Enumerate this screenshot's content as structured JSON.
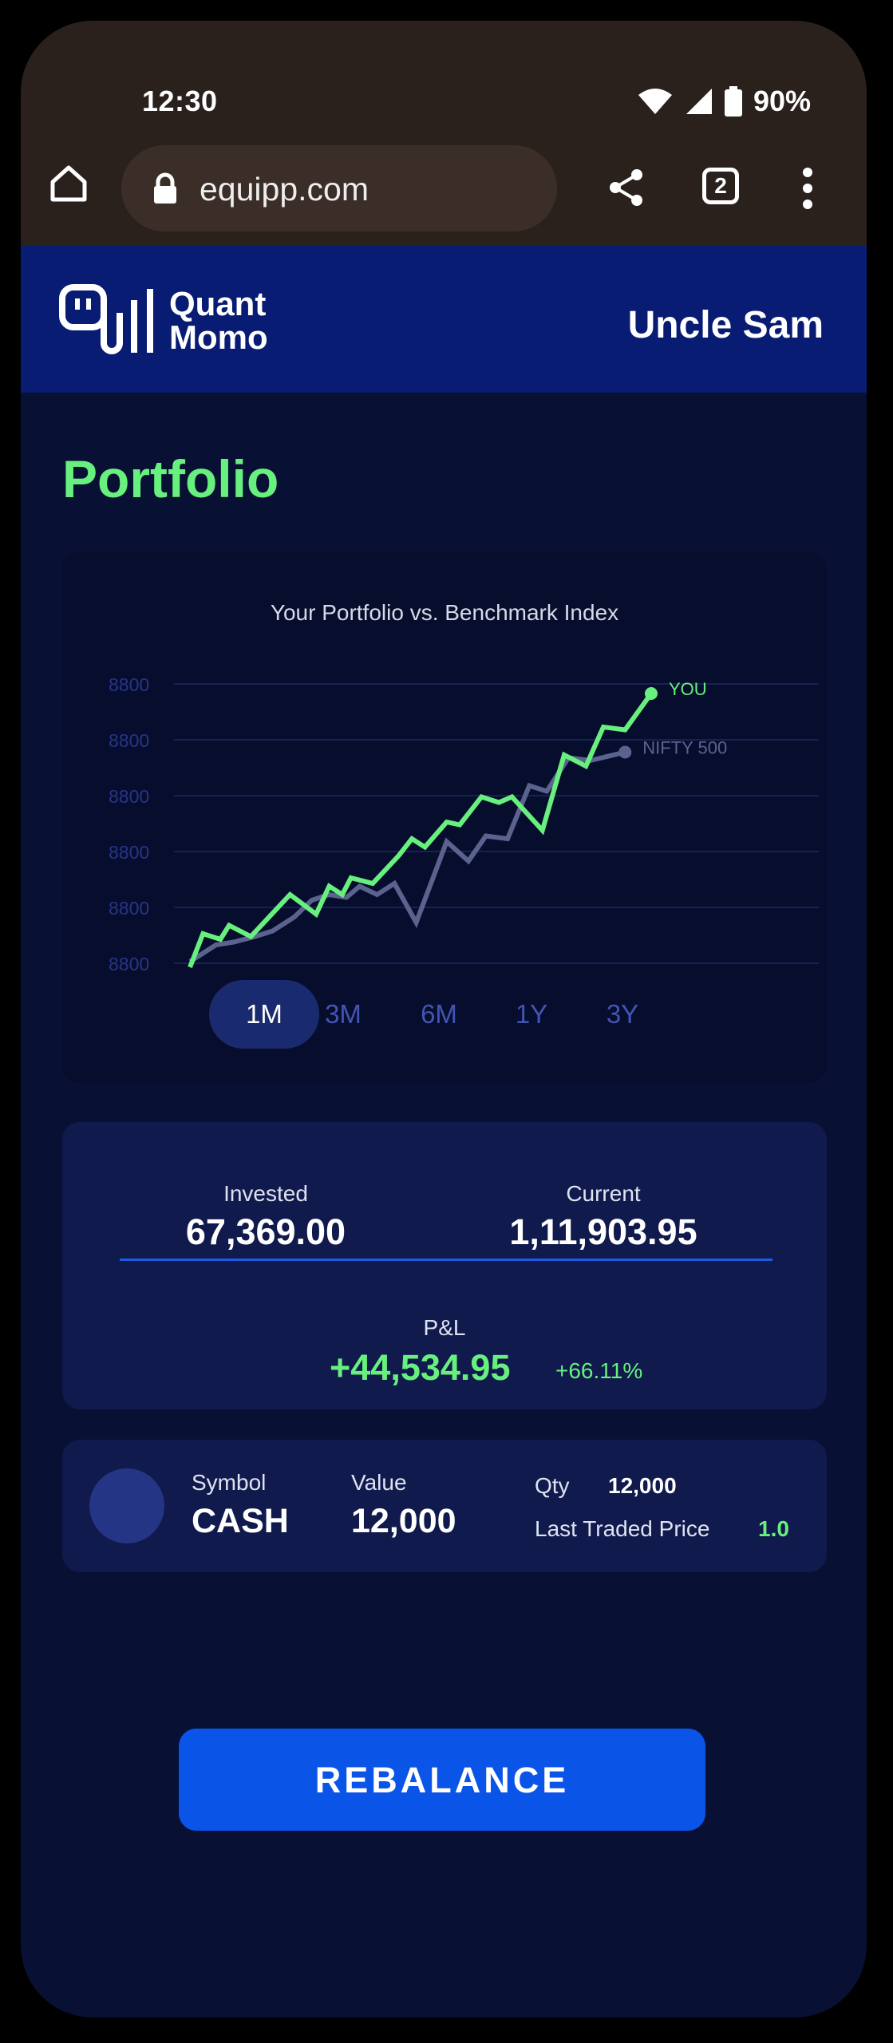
{
  "status": {
    "time": "12:30",
    "battery": "90%"
  },
  "browser": {
    "url": "equipp.com",
    "tab_count": "2"
  },
  "app": {
    "brand_line1": "Quant",
    "brand_line2": "Momo",
    "user_name": "Uncle Sam"
  },
  "page": {
    "title": "Portfolio"
  },
  "chart_data": {
    "type": "line",
    "title": "Your Portfolio vs. Benchmark Index",
    "y_ticks": [
      "8800",
      "8800",
      "8800",
      "8800",
      "8800",
      "8800"
    ],
    "ylim": [
      0,
      5
    ],
    "grid": true,
    "series": [
      {
        "name": "YOU",
        "color": "#68f07e",
        "values": [
          0.0,
          0.6,
          0.5,
          0.75,
          0.55,
          1.3,
          0.95,
          1.45,
          1.3,
          1.6,
          1.5,
          2.0,
          2.3,
          2.15,
          2.6,
          2.55,
          3.05,
          2.95,
          3.05,
          2.45,
          3.8,
          3.6,
          4.3,
          4.25,
          4.9
        ],
        "x": [
          0,
          0.15,
          0.35,
          0.45,
          0.7,
          1.15,
          1.45,
          1.6,
          1.75,
          1.85,
          2.1,
          2.4,
          2.55,
          2.7,
          2.95,
          3.1,
          3.35,
          3.55,
          3.7,
          4.05,
          4.3,
          4.55,
          4.75,
          5.0,
          5.3
        ]
      },
      {
        "name": "NIFTY 500",
        "color": "#5a638e",
        "values": [
          0.1,
          0.4,
          0.45,
          0.55,
          0.65,
          0.9,
          1.2,
          1.3,
          1.25,
          1.45,
          1.3,
          1.5,
          0.8,
          2.25,
          1.9,
          2.35,
          2.3,
          3.25,
          3.15,
          3.75,
          3.7,
          3.85
        ],
        "x": [
          0,
          0.3,
          0.5,
          0.75,
          0.95,
          1.2,
          1.4,
          1.6,
          1.8,
          1.95,
          2.15,
          2.35,
          2.6,
          2.95,
          3.2,
          3.4,
          3.65,
          3.9,
          4.1,
          4.35,
          4.6,
          5.0
        ]
      }
    ],
    "range_options": [
      "1M",
      "3M",
      "6M",
      "1Y",
      "3Y"
    ],
    "selected_range": "1M"
  },
  "summary": {
    "invested_label": "Invested",
    "invested_value": "67,369.00",
    "current_label": "Current",
    "current_value": "1,11,903.95",
    "pnl_label": "P&L",
    "pnl_value": "+44,534.95",
    "pnl_pct": "+66.11%"
  },
  "holding": {
    "symbol_label": "Symbol",
    "symbol": "CASH",
    "value_label": "Value",
    "value": "12,000",
    "qty_label": "Qty",
    "qty": "12,000",
    "ltp_label": "Last Traded Price",
    "ltp": "1.0"
  },
  "actions": {
    "rebalance_label": "REBALANCE"
  },
  "colors": {
    "accent_green": "#68f07e",
    "brand_blue": "#071c72",
    "button_blue": "#0a55e8",
    "bg": "#081033"
  }
}
